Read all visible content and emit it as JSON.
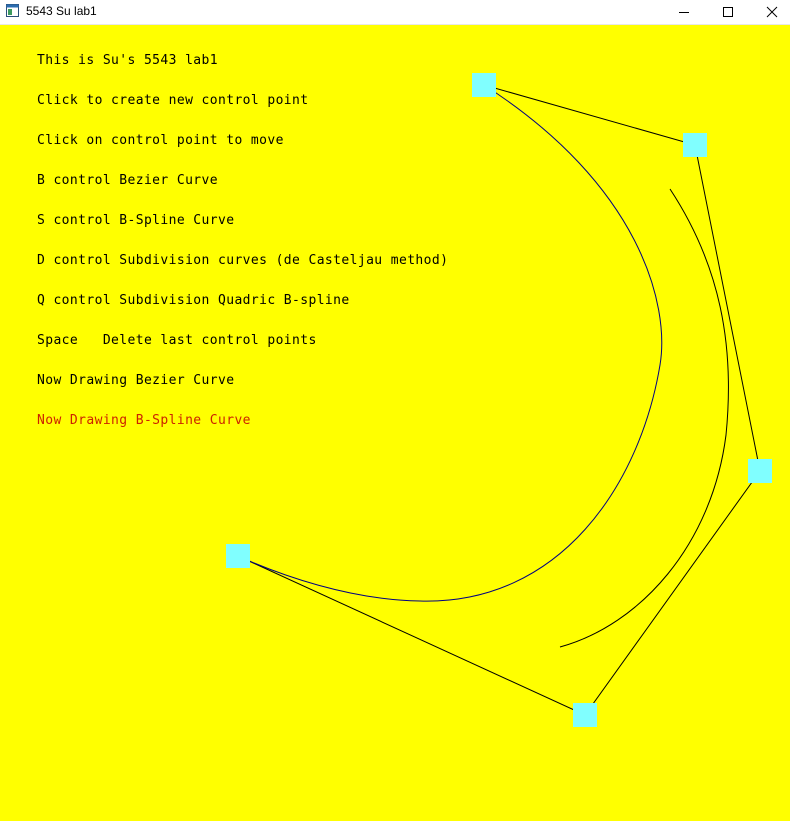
{
  "window": {
    "title": "5543 Su lab1",
    "app_icon": "app-window-icon",
    "controls": [
      "minimize-icon",
      "maximize-icon",
      "close-icon"
    ]
  },
  "colors": {
    "background": "#ffff00",
    "control_point": "#80ffff",
    "polygon": "#000000",
    "bezier_curve": "#000080",
    "bspline_curve": "#000000",
    "text": "#000000",
    "text_active": "#cc2200"
  },
  "info": {
    "lines": [
      "This is Su's 5543 lab1",
      "Click to create new control point",
      "Click on control point to move",
      "B control Bezier Curve",
      "S control B-Spline Curve",
      "D control Subdivision curves (de Casteljau method)",
      "Q control Subdivision Quadric B-spline",
      "Space   Delete last control points",
      "Now Drawing Bezier Curve",
      "Now Drawing B-Spline Curve"
    ]
  }
}
